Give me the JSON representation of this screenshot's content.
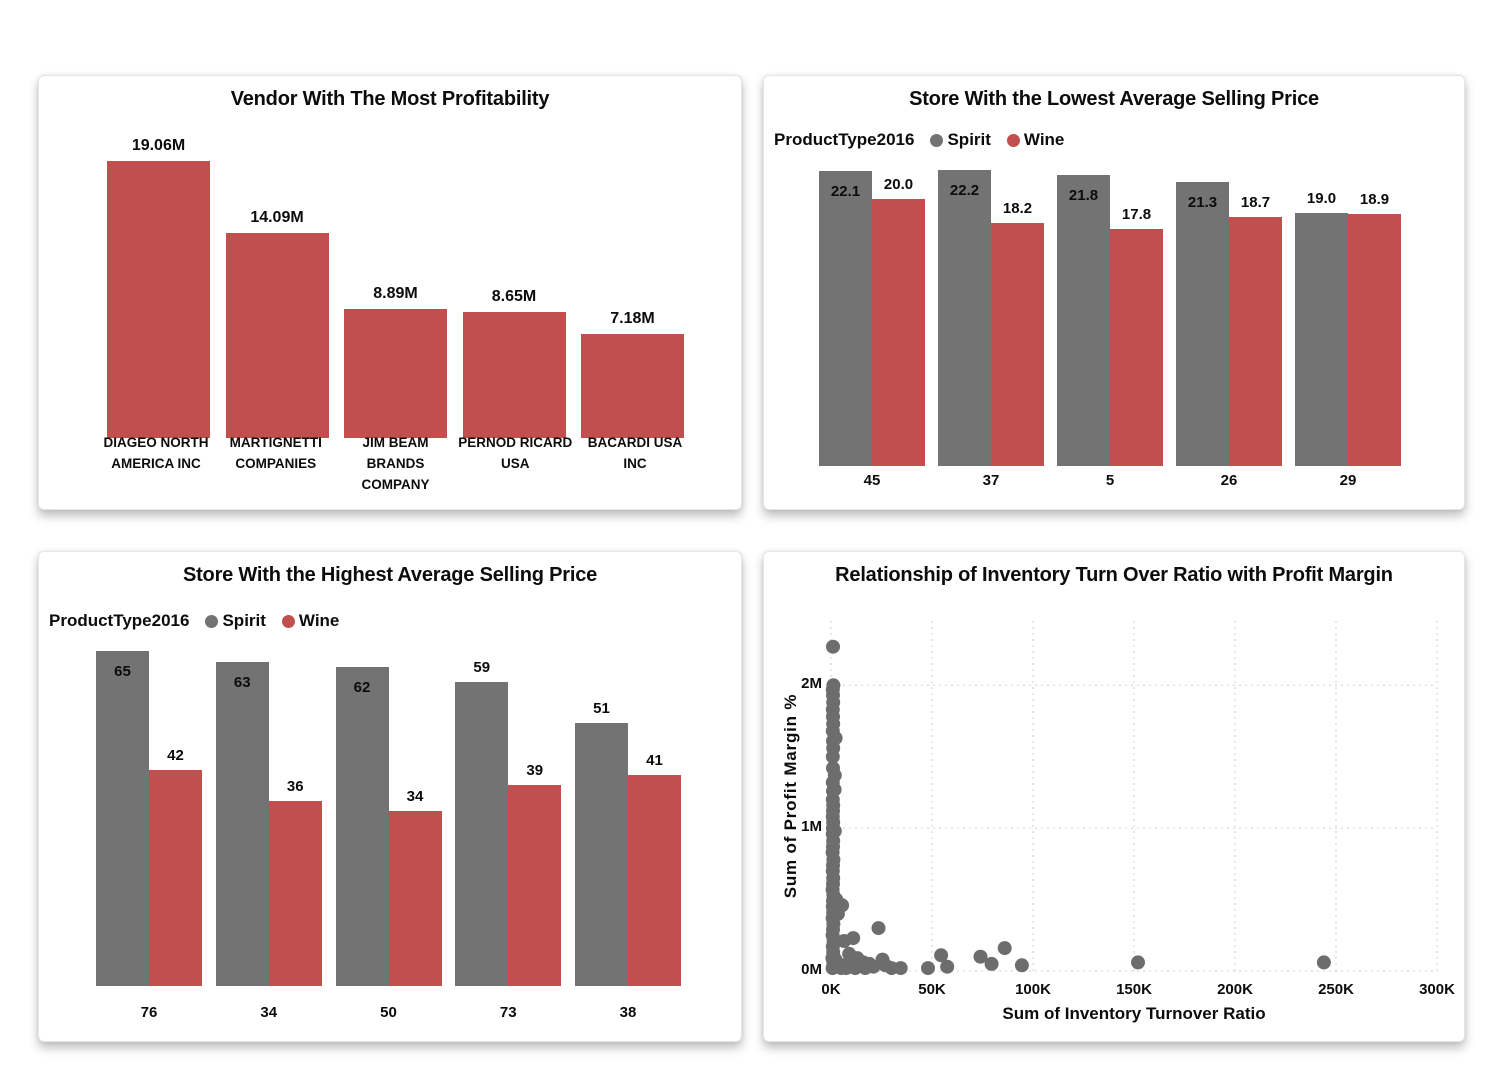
{
  "colors": {
    "spirit_gray": "#737373",
    "wine_red": "#c04f4d",
    "scatter_dot": "#6d6d6d",
    "gridline": "#cfcfcf",
    "text": "#0c0c0c",
    "card_background": "#ffffff"
  },
  "charts": [
    {
      "name": "vendor-profitability",
      "type": "bar",
      "title": "Vendor With The Most Profitability",
      "bar_color": "#c04f4d",
      "ymax": 19.06,
      "categories": [
        [
          "DIAGEO NORTH",
          "AMERICA INC"
        ],
        [
          "MARTIGNETTI",
          "COMPANIES"
        ],
        [
          "JIM BEAM BRANDS",
          "COMPANY"
        ],
        [
          "PERNOD RICARD",
          "USA"
        ],
        [
          "BACARDI USA INC"
        ]
      ],
      "values": [
        19.06,
        14.09,
        8.89,
        8.65,
        7.18
      ],
      "value_labels": [
        "19.06M",
        "14.09M",
        "8.89M",
        "8.65M",
        "7.18M"
      ]
    },
    {
      "name": "lowest-average-selling-price",
      "type": "grouped_bar",
      "title": "Store With the Lowest Average Selling Price",
      "legend_title": "ProductType2016",
      "ymax": 22.5,
      "categories": [
        "45",
        "37",
        "5",
        "26",
        "29"
      ],
      "series": [
        {
          "name": "Spirit",
          "color": "#737373",
          "values": [
            22.1,
            22.2,
            21.8,
            21.3,
            19.0
          ],
          "value_labels": [
            "22.1",
            "22.2",
            "21.8",
            "21.3",
            "19.0"
          ],
          "label_inside": [
            true,
            true,
            true,
            true,
            false
          ]
        },
        {
          "name": "Wine",
          "color": "#c04f4d",
          "values": [
            20.0,
            18.2,
            17.8,
            18.7,
            18.9
          ],
          "value_labels": [
            "20.0",
            "18.2",
            "17.8",
            "18.7",
            "18.9"
          ],
          "label_inside": [
            false,
            false,
            false,
            false,
            false
          ]
        }
      ]
    },
    {
      "name": "highest-average-selling-price",
      "type": "grouped_bar",
      "title": "Store With the Highest Average Selling Price",
      "legend_title": "ProductType2016",
      "ymax": 66,
      "categories": [
        "76",
        "34",
        "50",
        "73",
        "38"
      ],
      "series": [
        {
          "name": "Spirit",
          "color": "#737373",
          "values": [
            65,
            63,
            62,
            59,
            51
          ],
          "value_labels": [
            "65",
            "63",
            "62",
            "59",
            "51"
          ],
          "label_inside": [
            true,
            true,
            true,
            false,
            false
          ]
        },
        {
          "name": "Wine",
          "color": "#c04f4d",
          "values": [
            42,
            36,
            34,
            39,
            41
          ],
          "value_labels": [
            "42",
            "36",
            "34",
            "39",
            "41"
          ],
          "label_inside": [
            false,
            false,
            false,
            false,
            false
          ]
        }
      ]
    },
    {
      "name": "inventory-turnover-vs-profit-margin",
      "type": "scatter",
      "title": "Relationship of Inventory Turn Over Ratio with Profit Margin",
      "xlabel": "Sum of Inventory Turnover Ratio",
      "ylabel": "Sum of Profit Margin %",
      "dot_color": "#6d6d6d",
      "grid_color": "#cfcfcf",
      "x_ticks": [
        "0K",
        "50K",
        "100K",
        "150K",
        "200K",
        "250K",
        "300K"
      ],
      "x_tick_values": [
        0,
        50,
        100,
        150,
        200,
        250,
        300
      ],
      "y_ticks": [
        "0M",
        "1M",
        "2M"
      ],
      "y_tick_values": [
        0,
        1,
        2
      ],
      "x_range_k": [
        0,
        300
      ],
      "y_range_m": [
        0,
        2.45
      ],
      "points_k_m": [
        [
          0.8,
          0.02
        ],
        [
          1.2,
          0.05
        ],
        [
          0.7,
          0.09
        ],
        [
          1.1,
          0.13
        ],
        [
          0.9,
          0.17
        ],
        [
          1.3,
          0.21
        ],
        [
          0.8,
          0.25
        ],
        [
          1.0,
          0.29
        ],
        [
          1.2,
          0.33
        ],
        [
          0.8,
          0.37
        ],
        [
          1.1,
          0.41
        ],
        [
          0.9,
          0.45
        ],
        [
          1.0,
          0.49
        ],
        [
          1.2,
          0.53
        ],
        [
          0.8,
          0.57
        ],
        [
          1.0,
          0.61
        ],
        [
          1.1,
          0.65
        ],
        [
          0.9,
          0.7
        ],
        [
          1.0,
          0.74
        ],
        [
          1.2,
          0.78
        ],
        [
          0.8,
          0.83
        ],
        [
          1.0,
          0.87
        ],
        [
          1.1,
          0.91
        ],
        [
          0.9,
          0.96
        ],
        [
          1.0,
          1.0
        ],
        [
          1.1,
          1.04
        ],
        [
          0.9,
          1.08
        ],
        [
          1.0,
          1.12
        ],
        [
          1.1,
          1.16
        ],
        [
          0.9,
          1.2
        ],
        [
          1.0,
          1.26
        ],
        [
          1.8,
          1.27
        ],
        [
          0.9,
          1.32
        ],
        [
          1.9,
          1.37
        ],
        [
          1.0,
          1.42
        ],
        [
          0.9,
          1.5
        ],
        [
          1.1,
          1.56
        ],
        [
          1.0,
          1.61
        ],
        [
          2.3,
          1.63
        ],
        [
          0.9,
          1.68
        ],
        [
          1.1,
          1.73
        ],
        [
          1.0,
          1.78
        ],
        [
          0.9,
          1.83
        ],
        [
          1.1,
          1.88
        ],
        [
          1.0,
          1.93
        ],
        [
          0.9,
          1.97
        ],
        [
          1.2,
          2.0
        ],
        [
          1.0,
          2.27
        ],
        [
          1.9,
          0.98
        ],
        [
          2.6,
          0.5
        ],
        [
          5.5,
          0.46
        ],
        [
          3.4,
          0.4
        ],
        [
          6.5,
          0.21
        ],
        [
          11,
          0.23
        ],
        [
          9,
          0.12
        ],
        [
          13,
          0.09
        ],
        [
          16,
          0.06
        ],
        [
          19,
          0.05
        ],
        [
          23.5,
          0.3
        ],
        [
          25.5,
          0.08
        ],
        [
          2.2,
          0.08
        ],
        [
          3,
          0.05
        ],
        [
          4.2,
          0.03
        ],
        [
          5,
          0.02
        ],
        [
          6,
          0.04
        ],
        [
          7.5,
          0.02
        ],
        [
          8.5,
          0.05
        ],
        [
          10,
          0.03
        ],
        [
          12,
          0.02
        ],
        [
          14,
          0.04
        ],
        [
          17,
          0.02
        ],
        [
          21,
          0.03
        ],
        [
          27,
          0.04
        ],
        [
          30,
          0.02
        ],
        [
          34.5,
          0.02
        ],
        [
          48,
          0.02
        ],
        [
          54.5,
          0.11
        ],
        [
          57.5,
          0.03
        ],
        [
          74,
          0.1
        ],
        [
          79.5,
          0.05
        ],
        [
          86,
          0.16
        ],
        [
          94.5,
          0.04
        ],
        [
          152,
          0.06
        ],
        [
          244,
          0.06
        ]
      ]
    }
  ]
}
